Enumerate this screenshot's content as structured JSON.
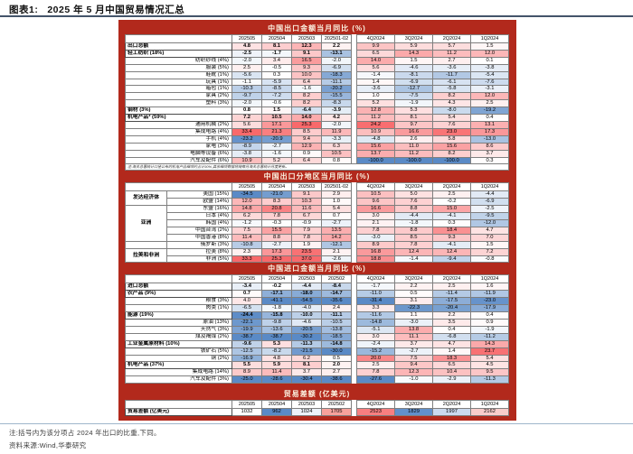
{
  "page": {
    "figure_label": "图表1:",
    "figure_title": "2025 年 5 月中国贸易情况汇总",
    "bottom_note": "注:括号内为该分项占 2024 年出口的比重,下同。",
    "source": "资料来源:Wind,华泰研究"
  },
  "colors": {
    "panel_red": "#B2291C",
    "heat_red": "#F8696B",
    "heat_blue": "#5A8AC6",
    "title_text": "#FCF3E2",
    "header_rule": "#44546A",
    "footer_rule": "#9FB6CB"
  },
  "chart_data": [
    {
      "type": "table",
      "id": "export_products",
      "title": "中国出口金额当月同比 (%)",
      "bold_monthly": true,
      "columns": [
        "202505",
        "202504",
        "202503",
        "202501-02",
        "4Q2024",
        "3Q2024",
        "2Q2024",
        "1Q2024"
      ],
      "rows": [
        {
          "label": "出口总额",
          "level": 0,
          "values": [
            "4.8",
            "8.1",
            "12.3",
            "2.2",
            "9.9",
            "5.9",
            "5.7",
            "1.5"
          ]
        },
        {
          "label": "轻工纺织 (18%)",
          "level": 0,
          "values": [
            "-2.5",
            "-1.7",
            "9.1",
            "-13.1",
            "6.5",
            "14.3",
            "11.2",
            "12.0"
          ]
        },
        {
          "label": "纺织纱线 (4%)",
          "level": 1,
          "values": [
            "-2.0",
            "3.4",
            "16.5",
            "-2.0",
            "14.0",
            "1.5",
            "2.7",
            "0.1"
          ]
        },
        {
          "label": "服装 (5%)",
          "level": 1,
          "values": [
            "2.5",
            "-0.5",
            "9.3",
            "-6.9",
            "5.6",
            "-4.6",
            "-3.6",
            "-3.8"
          ]
        },
        {
          "label": "鞋靴 (1%)",
          "level": 1,
          "values": [
            "-5.6",
            "0.3",
            "10.0",
            "-18.3",
            "-1.4",
            "-8.1",
            "-11.7",
            "-5.4"
          ]
        },
        {
          "label": "玩具 (1%)",
          "level": 1,
          "values": [
            "-1.1",
            "-5.9",
            "6.4",
            "-11.1",
            "1.4",
            "-6.9",
            "-6.1",
            "-7.6"
          ]
        },
        {
          "label": "箱包 (1%)",
          "level": 1,
          "values": [
            "-10.3",
            "-8.5",
            "-1.6",
            "-20.2",
            "-3.6",
            "-12.7",
            "-5.8",
            "-3.1"
          ]
        },
        {
          "label": "家具 (2%)",
          "level": 1,
          "values": [
            "-9.7",
            "-7.2",
            "8.2",
            "-15.5",
            "1.0",
            "-7.5",
            "8.2",
            "12.0"
          ]
        },
        {
          "label": "塑料 (3%)",
          "level": 1,
          "values": [
            "-2.0",
            "-0.6",
            "8.2",
            "-8.3",
            "5.2",
            "-1.9",
            "4.3",
            "2.5"
          ]
        },
        {
          "label": "钢材 (3%)",
          "level": 0,
          "values": [
            "0.8",
            "1.5",
            "-6.4",
            "-3.9",
            "12.8",
            "5.3",
            "-8.0",
            "-19.2"
          ]
        },
        {
          "label": "机电产品* (59%)",
          "level": 0,
          "values": [
            "7.2",
            "10.5",
            "14.0",
            "4.2",
            "11.2",
            "8.1",
            "5.4",
            "0.4"
          ]
        },
        {
          "label": "通用机械 (2%)",
          "level": 1,
          "values": [
            "5.6",
            "17.1",
            "25.3",
            "-2.0",
            "24.2",
            "9.7",
            "7.6",
            "13.1"
          ]
        },
        {
          "label": "集成电路 (4%)",
          "level": 1,
          "values": [
            "33.4",
            "21.3",
            "8.5",
            "11.9",
            "10.9",
            "16.6",
            "23.0",
            "17.3"
          ]
        },
        {
          "label": "手机 (4%)",
          "level": 1,
          "values": [
            "-23.2",
            "-20.9",
            "9.4",
            "-3.3",
            "-4.8",
            "2.6",
            "5.8",
            "-13.0"
          ]
        },
        {
          "label": "家电 (3%)",
          "level": 1,
          "values": [
            "-8.9",
            "-2.7",
            "12.9",
            "6.3",
            "15.6",
            "11.0",
            "15.6",
            "8.6"
          ]
        },
        {
          "label": "电脑等设备 (6%)",
          "level": 1,
          "values": [
            "-3.8",
            "-1.6",
            "0.9",
            "10.5",
            "13.7",
            "11.2",
            "8.2",
            "3.7"
          ]
        },
        {
          "label": "汽车及配件 (6%)",
          "level": 1,
          "values": [
            "10.9",
            "5.2",
            "6.4",
            "0.8",
            "-100.0",
            "-100.0",
            "-100.0",
            "0.3"
          ]
        }
      ],
      "footnote": "注:海关总署统计口径公布的机电产品细项约占计30%,其余细项数据将随每月海关总署统计月度更新。"
    },
    {
      "type": "table",
      "id": "export_regions",
      "title": "中国出口分地区当月同比 (%)",
      "bold_monthly": false,
      "columns": [
        "202505",
        "202504",
        "202503",
        "202501-02",
        "4Q2024",
        "3Q2024",
        "2Q2024",
        "1Q2024"
      ],
      "groups": [
        {
          "label": "发达经济体",
          "span": 2
        },
        {
          "label": "亚洲",
          "span": 5
        },
        {
          "label": "",
          "span": 1
        },
        {
          "label": "拉美和非洲",
          "span": 2
        }
      ],
      "rows": [
        {
          "label": "美国 (15%)",
          "level": 1,
          "values": [
            "-34.5",
            "-21.0",
            "9.1",
            "2.9",
            "10.5",
            "5.0",
            "2.5",
            "-4.4"
          ]
        },
        {
          "label": "欧盟 (14%)",
          "level": 1,
          "values": [
            "12.0",
            "8.3",
            "10.3",
            "1.0",
            "9.6",
            "7.6",
            "-0.2",
            "-6.9"
          ]
        },
        {
          "label": "东盟 (16%)",
          "level": 1,
          "values": [
            "14.8",
            "20.8",
            "11.6",
            "5.4",
            "16.6",
            "8.8",
            "15.0",
            "-2.5"
          ]
        },
        {
          "label": "日本 (4%)",
          "level": 1,
          "values": [
            "6.2",
            "7.8",
            "6.7",
            "0.7",
            "3.0",
            "-4.4",
            "-4.1",
            "-9.5"
          ]
        },
        {
          "label": "韩国 (4%)",
          "level": 1,
          "values": [
            "-1.2",
            "-0.3",
            "-0.9",
            "-2.7",
            "2.1",
            "-1.8",
            "0.3",
            "-12.0"
          ]
        },
        {
          "label": "中国台湾 (2%)",
          "level": 1,
          "values": [
            "7.5",
            "15.5",
            "7.9",
            "13.5",
            "7.8",
            "8.8",
            "18.4",
            "4.7"
          ]
        },
        {
          "label": "中国香港 (8%)",
          "level": 1,
          "values": [
            "11.4",
            "8.8",
            "7.8",
            "14.2",
            "-3.0",
            "8.5",
            "9.3",
            "7.0"
          ]
        },
        {
          "label": "俄罗斯 (3%)",
          "level": 1,
          "values": [
            "-10.8",
            "-2.7",
            "1.9",
            "-12.1",
            "8.9",
            "7.8",
            "-4.1",
            "1.5"
          ]
        },
        {
          "label": "拉美 (8%)",
          "level": 1,
          "values": [
            "2.3",
            "17.3",
            "23.5",
            "2.1",
            "16.8",
            "12.4",
            "12.4",
            "7.2"
          ]
        },
        {
          "label": "非洲 (5%)",
          "level": 1,
          "values": [
            "33.3",
            "25.3",
            "37.0",
            "-2.6",
            "18.8",
            "-1.4",
            "-9.4",
            "-0.8"
          ]
        }
      ]
    },
    {
      "type": "table",
      "id": "import_products",
      "title": "中国进口金额当月同比 (%)",
      "bold_monthly": true,
      "columns": [
        "202505",
        "202504",
        "202503",
        "202502",
        "4Q2024",
        "3Q2024",
        "2Q2024",
        "1Q2024"
      ],
      "rows": [
        {
          "label": "进口总额",
          "level": 0,
          "values": [
            "-3.4",
            "-0.2",
            "-4.4",
            "-8.4",
            "-1.7",
            "2.2",
            "2.5",
            "1.6"
          ]
        },
        {
          "label": "农产品 (9%)",
          "level": 0,
          "values": [
            "0.7",
            "-17.1",
            "-18.0",
            "-14.7",
            "-11.0",
            "0.5",
            "-11.4",
            "-11.9"
          ]
        },
        {
          "label": "粮食 (3%)",
          "level": 1,
          "values": [
            "4.0",
            "-41.1",
            "-54.5",
            "-35.6",
            "-31.4",
            "3.1",
            "-17.5",
            "-23.0"
          ]
        },
        {
          "label": "肉类 (1%)",
          "level": 1,
          "values": [
            "-6.5",
            "-1.8",
            "-4.0",
            "2.4",
            "3.3",
            "-22.3",
            "-20.4",
            "-17.9"
          ]
        },
        {
          "label": "能源 (19%)",
          "level": 0,
          "values": [
            "-24.4",
            "-15.8",
            "-10.0",
            "-11.1",
            "-11.6",
            "1.1",
            "2.2",
            "0.4"
          ]
        },
        {
          "label": "原油 (13%)",
          "level": 1,
          "values": [
            "-22.1",
            "-9.8",
            "-4.6",
            "-10.5",
            "-14.8",
            "-3.0",
            "3.5",
            "0.9"
          ]
        },
        {
          "label": "天然气 (3%)",
          "level": 1,
          "values": [
            "-19.9",
            "-13.6",
            "-20.5",
            "-13.8",
            "-5.1",
            "13.8",
            "0.4",
            "-1.9"
          ]
        },
        {
          "label": "煤及褐煤 (2%)",
          "level": 1,
          "values": [
            "-38.7",
            "-38.7",
            "-30.2",
            "-18.5",
            "3.0",
            "11.1",
            "-6.8",
            "-11.2"
          ]
        },
        {
          "label": "工业金属原材料 (10%)",
          "level": 0,
          "values": [
            "-9.6",
            "5.3",
            "-11.3",
            "-14.8",
            "-2.4",
            "3.7",
            "4.7",
            "14.3"
          ]
        },
        {
          "label": "铁矿石 (5%)",
          "level": 1,
          "values": [
            "-12.5",
            "-8.2",
            "-21.5",
            "-30.0",
            "-15.2",
            "-2.7",
            "1.4",
            "23.7"
          ]
        },
        {
          "label": "铜 (2%)",
          "level": 1,
          "values": [
            "-16.9",
            "4.8",
            "6.2",
            "0.5",
            "20.0",
            "7.5",
            "18.3",
            "5.4"
          ]
        },
        {
          "label": "机电产品 (37%)",
          "level": 0,
          "values": [
            "5.5",
            "5.9",
            "8.1",
            "2.0",
            "2.5",
            "9.4",
            "6.5",
            "4.5"
          ]
        },
        {
          "label": "集成电路 (14%)",
          "level": 1,
          "values": [
            "8.9",
            "11.4",
            "3.7",
            "2.7",
            "7.8",
            "12.3",
            "10.4",
            "9.5"
          ]
        },
        {
          "label": "汽车及配件 (3%)",
          "level": 1,
          "values": [
            "-25.0",
            "-28.6",
            "-30.4",
            "-38.6",
            "-27.6",
            "-1.0",
            "-2.9",
            "-11.3"
          ]
        }
      ]
    },
    {
      "type": "table",
      "id": "trade_balance",
      "title": "贸易差额 (亿美元)",
      "bold_monthly": false,
      "columns": [
        "202505",
        "202504",
        "202503",
        "202502",
        "4Q2024",
        "3Q2024",
        "2Q2024",
        "1Q2024"
      ],
      "rows": [
        {
          "label": "贸易差额 (亿美元)",
          "level": 0,
          "values": [
            "1032",
            "962",
            "1024",
            "1705",
            "2523",
            "1829",
            "1997",
            "2162"
          ],
          "cell_colors": [
            "#FFFFFF",
            "#5A8AC6",
            "#EDF2F9",
            "#F7A29C",
            "#F87F80",
            "#6290CB",
            "#CBDAEF",
            "#F8CDCB"
          ]
        }
      ]
    }
  ]
}
